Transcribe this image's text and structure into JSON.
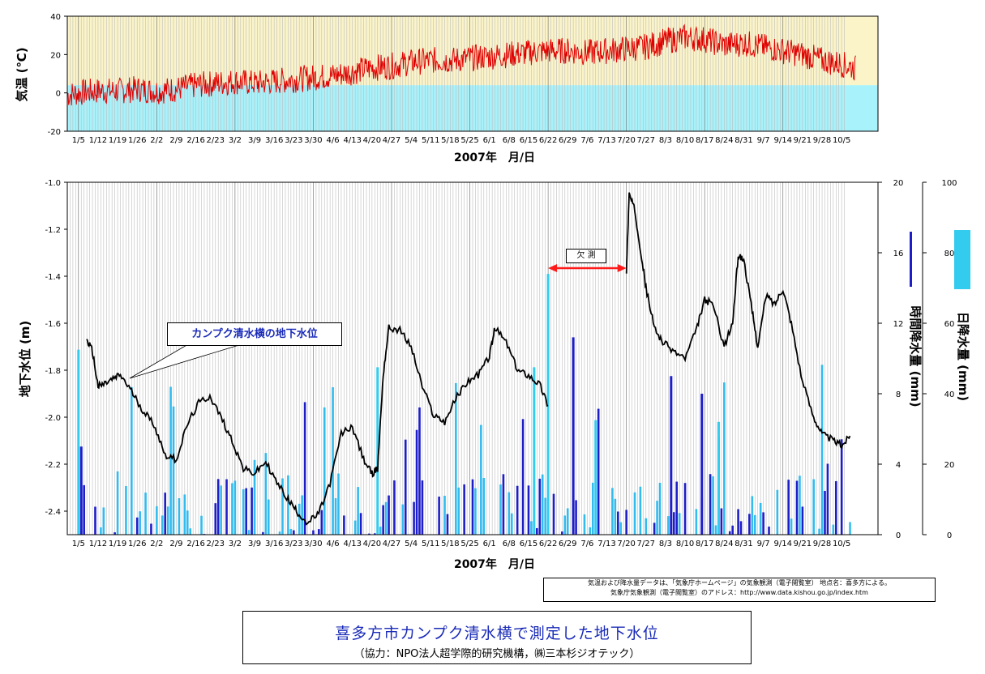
{
  "chart_data": [
    {
      "type": "line",
      "ylabel": "気温 (℃)",
      "xlabel": "2007年　月/日",
      "ylim": [
        -20,
        40
      ],
      "yticks": [
        40,
        20,
        0,
        -20
      ],
      "x_tick_labels": [
        "1/5",
        "1/12",
        "1/19",
        "1/26",
        "2/2",
        "2/9",
        "2/16",
        "2/23",
        "3/2",
        "3/9",
        "3/16",
        "3/23",
        "3/30",
        "4/6",
        "4/13",
        "4/20",
        "4/27",
        "5/4",
        "5/11",
        "5/18",
        "5/25",
        "6/1",
        "6/8",
        "6/15",
        "6/22",
        "6/29",
        "7/6",
        "7/13",
        "7/20",
        "7/27",
        "8/3",
        "8/10",
        "8/17",
        "8/24",
        "8/31",
        "9/7",
        "9/14",
        "9/21",
        "9/28",
        "10/5"
      ],
      "series": [
        {
          "color": "#e00000",
          "x": [
            "1/1",
            "1/5",
            "1/12",
            "1/19",
            "1/26",
            "2/2",
            "2/9",
            "2/16",
            "2/23",
            "3/2",
            "3/9",
            "3/16",
            "3/23",
            "3/30",
            "4/6",
            "4/13",
            "4/20",
            "4/27",
            "5/4",
            "5/11",
            "5/18",
            "5/25",
            "6/1",
            "6/8",
            "6/15",
            "6/22",
            "6/29",
            "7/6",
            "7/13",
            "7/20",
            "7/27",
            "8/3",
            "8/10",
            "8/17",
            "8/24",
            "8/31",
            "9/7",
            "9/14",
            "9/21",
            "9/28",
            "10/5",
            "10/12"
          ],
          "values": [
            -1,
            0,
            1,
            1,
            2,
            1,
            2,
            4,
            5,
            6,
            5,
            6,
            7,
            8,
            9,
            11,
            13,
            14,
            16,
            17,
            17,
            18,
            19,
            20,
            21,
            22,
            22,
            21,
            22,
            23,
            24,
            27,
            29,
            28,
            25,
            26,
            24,
            22,
            20,
            17,
            15,
            12
          ]
        }
      ]
    },
    {
      "type": "line+bar",
      "ylabel": "地下水位 (m)",
      "y2label": "時間降水量 (mm)",
      "y3label": "日降水量 (mm)",
      "xlabel": "2007年　月/日",
      "ylim": [
        -2.5,
        -1.0
      ],
      "yticks": [
        -1.0,
        -1.2,
        -1.4,
        -1.6,
        -1.8,
        -2.0,
        -2.2,
        -2.4
      ],
      "y2lim": [
        0,
        20
      ],
      "y2ticks": [
        20,
        16,
        12,
        8,
        4,
        0
      ],
      "y3lim": [
        0,
        100
      ],
      "y3ticks": [
        100,
        80,
        60,
        40,
        20,
        0
      ],
      "x_tick_labels": [
        "1/5",
        "1/12",
        "1/19",
        "1/26",
        "2/2",
        "2/9",
        "2/16",
        "2/23",
        "3/2",
        "3/9",
        "3/16",
        "3/23",
        "3/30",
        "4/6",
        "4/13",
        "4/20",
        "4/27",
        "5/4",
        "5/11",
        "5/18",
        "5/25",
        "6/1",
        "6/8",
        "6/15",
        "6/22",
        "6/29",
        "7/6",
        "7/13",
        "7/20",
        "7/27",
        "8/3",
        "8/10",
        "8/17",
        "8/24",
        "8/31",
        "9/7",
        "9/14",
        "9/21",
        "9/28",
        "10/5"
      ],
      "groundwater": {
        "color": "#000000",
        "segments": [
          {
            "x": [
              "1/8",
              "1/10",
              "1/12",
              "1/14",
              "1/17",
              "1/20",
              "1/24",
              "1/28",
              "2/1",
              "2/5",
              "2/9",
              "2/13",
              "2/17",
              "2/21",
              "2/25",
              "3/1",
              "3/5",
              "3/9",
              "3/13",
              "3/17",
              "3/21",
              "3/24",
              "3/28",
              "4/1",
              "4/5",
              "4/9",
              "4/13",
              "4/17",
              "4/20",
              "4/22",
              "4/24",
              "4/26",
              "4/30",
              "5/4",
              "5/8",
              "5/12",
              "5/16",
              "5/20",
              "5/24",
              "5/28",
              "6/1",
              "6/3",
              "6/7",
              "6/11",
              "6/15",
              "6/19",
              "6/22"
            ],
            "values": [
              -1.67,
              -1.72,
              -1.87,
              -1.86,
              -1.84,
              -1.82,
              -1.89,
              -1.97,
              -2.03,
              -2.16,
              -2.18,
              -2.03,
              -1.94,
              -1.91,
              -2.0,
              -2.1,
              -2.22,
              -2.24,
              -2.19,
              -2.28,
              -2.35,
              -2.4,
              -2.45,
              -2.41,
              -2.28,
              -2.07,
              -2.04,
              -2.18,
              -2.24,
              -2.22,
              -1.82,
              -1.62,
              -1.63,
              -1.7,
              -1.87,
              -1.99,
              -2.02,
              -1.92,
              -1.85,
              -1.82,
              -1.74,
              -1.62,
              -1.68,
              -1.8,
              -1.82,
              -1.86,
              -1.95
            ]
          },
          {
            "x": [
              "7/20",
              "7/21",
              "7/23",
              "7/25",
              "7/27",
              "7/30",
              "8/2",
              "8/6",
              "8/10",
              "8/14",
              "8/17",
              "8/20",
              "8/24",
              "8/27",
              "8/29",
              "8/31",
              "9/3",
              "9/5",
              "9/8",
              "9/11",
              "9/14",
              "9/17",
              "9/21",
              "9/25",
              "9/28",
              "10/2",
              "10/5",
              "10/8"
            ],
            "values": [
              -1.38,
              -1.05,
              -1.12,
              -1.28,
              -1.45,
              -1.62,
              -1.68,
              -1.72,
              -1.75,
              -1.63,
              -1.5,
              -1.52,
              -1.7,
              -1.6,
              -1.31,
              -1.33,
              -1.55,
              -1.7,
              -1.48,
              -1.52,
              -1.45,
              -1.6,
              -1.85,
              -2.0,
              -2.07,
              -2.1,
              -2.12,
              -2.08
            ]
          }
        ]
      },
      "missing_range": [
        "6/22",
        "7/20"
      ],
      "annotations": {
        "missing_label": "欠 測",
        "callout_label": "カンプク清水横の地下水位"
      },
      "hourly_precip_legend_color": "#1e1ec8",
      "daily_precip_legend_color": "#33ccee"
    }
  ],
  "source_note": {
    "line1": "気温および降水量データは、「気象庁ホームページ」の気象観測（電子閲覧室） 地点名：喜多方による。",
    "line2": "気象庁気象観測（電子閲覧室）のアドレス：http://www.data.kishou.go.jp/index.htm"
  },
  "title": {
    "main": "喜多方市カンプク清水横で測定した地下水位",
    "sub": "（協力：NPO法人超学際的研究機構，㈱三本杉ジオテック）"
  }
}
